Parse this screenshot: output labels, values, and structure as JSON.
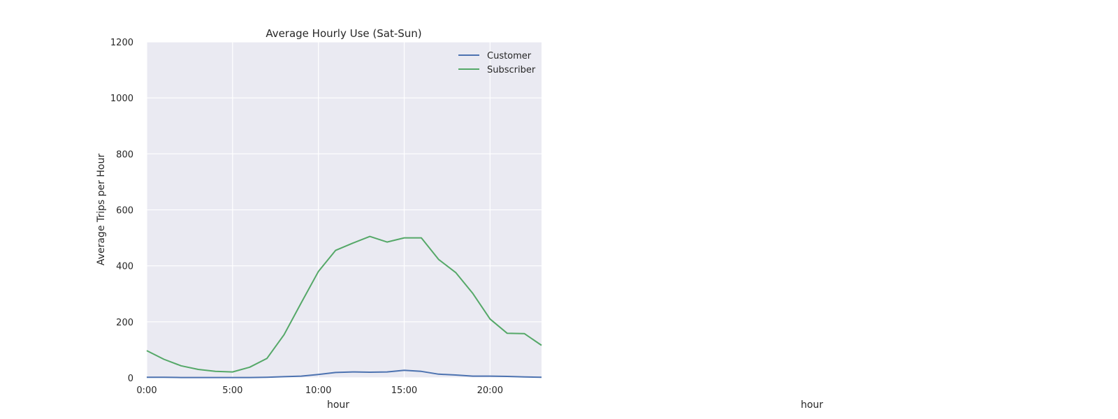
{
  "chart_data": {
    "type": "line",
    "title": "Average Hourly Use (Sat-Sun)",
    "xlabel": "hour",
    "ylabel": "Average Trips per Hour",
    "xlim": [
      0,
      23
    ],
    "ylim": [
      0,
      1200
    ],
    "x_ticks": [
      0,
      5,
      10,
      15,
      20
    ],
    "x_tick_labels": [
      "0:00",
      "5:00",
      "10:00",
      "15:00",
      "20:00"
    ],
    "y_ticks": [
      0,
      200,
      400,
      600,
      800,
      1000,
      1200
    ],
    "y_tick_labels": [
      "0",
      "200",
      "400",
      "600",
      "800",
      "1000",
      "1200"
    ],
    "grid": true,
    "legend_position": "upper right",
    "x": [
      0,
      1,
      2,
      3,
      4,
      5,
      6,
      7,
      8,
      9,
      10,
      11,
      12,
      13,
      14,
      15,
      16,
      17,
      18,
      19,
      20,
      21,
      22,
      23
    ],
    "series": [
      {
        "name": "Customer",
        "color": "#4c72b0",
        "values": [
          2,
          2,
          1,
          1,
          1,
          1,
          1,
          2,
          4,
          6,
          12,
          19,
          21,
          20,
          21,
          27,
          23,
          13,
          10,
          6,
          6,
          5,
          3,
          2
        ]
      },
      {
        "name": "Subscriber",
        "color": "#55a868",
        "values": [
          97,
          66,
          43,
          30,
          23,
          21,
          38,
          69,
          154,
          268,
          380,
          455,
          481,
          505,
          485,
          500,
          500,
          423,
          376,
          301,
          210,
          159,
          158,
          116
        ]
      }
    ]
  },
  "second_panel": {
    "xlabel": "hour"
  }
}
